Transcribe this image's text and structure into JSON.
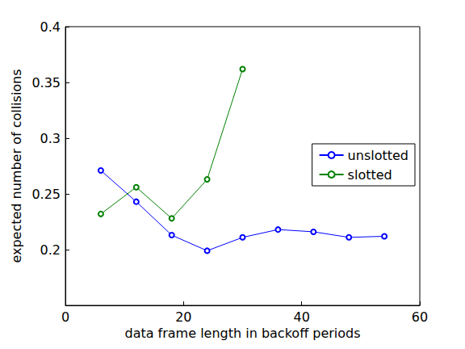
{
  "chart_data": {
    "type": "line",
    "x_label": "data frame length in backoff periods",
    "y_label": "expected number of collisions",
    "x": [
      6,
      12,
      18,
      24,
      30,
      36,
      42,
      48,
      54
    ],
    "series": [
      {
        "name": "unslotted",
        "color": "#0000ff",
        "values": [
          0.271,
          0.243,
          0.213,
          0.199,
          0.211,
          0.218,
          0.216,
          0.211,
          0.212
        ]
      },
      {
        "name": "slotted",
        "color": "#008000",
        "values": [
          0.232,
          0.256,
          0.228,
          0.263,
          0.362,
          null,
          null,
          null,
          null
        ]
      }
    ],
    "xlim": [
      0,
      60
    ],
    "xticks": [
      0,
      20,
      40,
      60
    ],
    "ylim": [
      0.15,
      0.4
    ],
    "yticks": [
      0.2,
      0.25,
      0.3,
      0.35,
      0.4
    ],
    "grid": false,
    "legend": "right",
    "marker": "circle"
  }
}
